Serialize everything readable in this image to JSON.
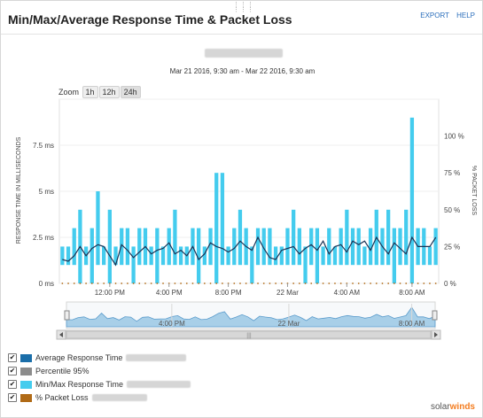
{
  "header": {
    "title": "Min/Max/Average Response Time & Packet Loss",
    "export_label": "EXPORT",
    "help_label": "HELP"
  },
  "date_range": "Mar 21 2016, 9:30 am - Mar 22 2016, 9:30 am",
  "zoom": {
    "label": "Zoom",
    "options": [
      "1h",
      "12h",
      "24h"
    ]
  },
  "navigator": {
    "ticks": [
      "4:00 PM",
      "22 Mar",
      "8:00 AM"
    ]
  },
  "legend": {
    "items": [
      {
        "label": "Average Response Time",
        "color": "#1a6ea9"
      },
      {
        "label": "Percentile 95%",
        "color": "#8c8c8c"
      },
      {
        "label": "Min/Max Response Time",
        "color": "#44ccee"
      },
      {
        "label": "% Packet Loss",
        "color": "#b06a16"
      }
    ]
  },
  "logo": {
    "left": "solar",
    "right": "winds"
  },
  "chart_data": {
    "type": "bar",
    "ylabel": "RESPONSE TIME IN MILLISECONDS",
    "y2label": "% PACKET LOSS",
    "y_ticks": [
      "0 ms",
      "2.5 ms",
      "5 ms",
      "7.5 ms"
    ],
    "y2_ticks": [
      "0 %",
      "25 %",
      "50 %",
      "75 %",
      "100 %"
    ],
    "ylim": [
      0,
      10
    ],
    "y2lim": [
      0,
      125
    ],
    "x_ticks": [
      "12:00 PM",
      "4:00 PM",
      "8:00 PM",
      "22 Mar",
      "4:00 AM",
      "8:00 AM"
    ],
    "series": [
      {
        "name": "Min/Max Response Time",
        "color": "#44ccee",
        "min": [
          1,
          1,
          1,
          0,
          1,
          0,
          1,
          1,
          0,
          1,
          1,
          1,
          0,
          1,
          1,
          1,
          0,
          1,
          1,
          1,
          1,
          1,
          1,
          0,
          1,
          1,
          0,
          1,
          1,
          1,
          1,
          1,
          0,
          1,
          1,
          1,
          1,
          1,
          1,
          1,
          1,
          0,
          1,
          0,
          1,
          1,
          1,
          1,
          1,
          1,
          1,
          1,
          1,
          1,
          1,
          1,
          0,
          1,
          1,
          0,
          1,
          1,
          1,
          1
        ],
        "max": [
          2,
          2,
          3,
          4,
          2,
          3,
          5,
          2,
          4,
          2,
          3,
          3,
          2,
          3,
          3,
          2,
          3,
          2,
          3,
          4,
          2,
          2,
          3,
          3,
          2,
          3,
          6,
          6,
          2,
          3,
          4,
          3,
          2,
          3,
          3,
          3,
          2,
          2,
          3,
          4,
          3,
          2,
          3,
          3,
          2,
          3,
          2,
          3,
          4,
          3,
          3,
          2,
          3,
          4,
          3,
          4,
          3,
          3,
          4,
          9,
          3,
          3,
          2,
          3
        ]
      },
      {
        "name": "Average Response Time",
        "color": "#1a3355",
        "values": [
          1.3,
          1.2,
          1.5,
          2.0,
          1.5,
          1.9,
          2.1,
          2.0,
          1.5,
          1.0,
          2.1,
          1.8,
          1.4,
          1.7,
          2.0,
          1.6,
          1.8,
          1.9,
          2.2,
          1.6,
          1.8,
          1.5,
          2.0,
          1.3,
          1.6,
          2.2,
          2.0,
          1.9,
          1.7,
          1.9,
          2.3,
          2.0,
          1.8,
          2.5,
          1.9,
          1.4,
          1.3,
          1.8,
          1.9,
          2.0,
          1.6,
          1.9,
          2.1,
          1.8,
          2.3,
          1.6,
          2.0,
          2.1,
          1.7,
          2.3,
          2.1,
          2.3,
          1.8,
          2.5,
          2.0,
          1.6,
          2.2,
          1.9,
          1.6,
          2.5,
          2.0,
          2.0,
          2.0,
          2.5
        ]
      },
      {
        "name": "% Packet Loss",
        "color": "#b06a16",
        "values": [
          0,
          0,
          0,
          0,
          0,
          0,
          0,
          0,
          0,
          0,
          0,
          0,
          0,
          0,
          0,
          0,
          0,
          0,
          0,
          0,
          0,
          0,
          0,
          0,
          0,
          0,
          0,
          0,
          0,
          0,
          0,
          0,
          0,
          0,
          0,
          0,
          0,
          0,
          0,
          0,
          0,
          0,
          0,
          0,
          0,
          0,
          0,
          0,
          0,
          0,
          0,
          0,
          0,
          0,
          0,
          0,
          0,
          0,
          0,
          0,
          0,
          0,
          0,
          0
        ]
      }
    ]
  }
}
